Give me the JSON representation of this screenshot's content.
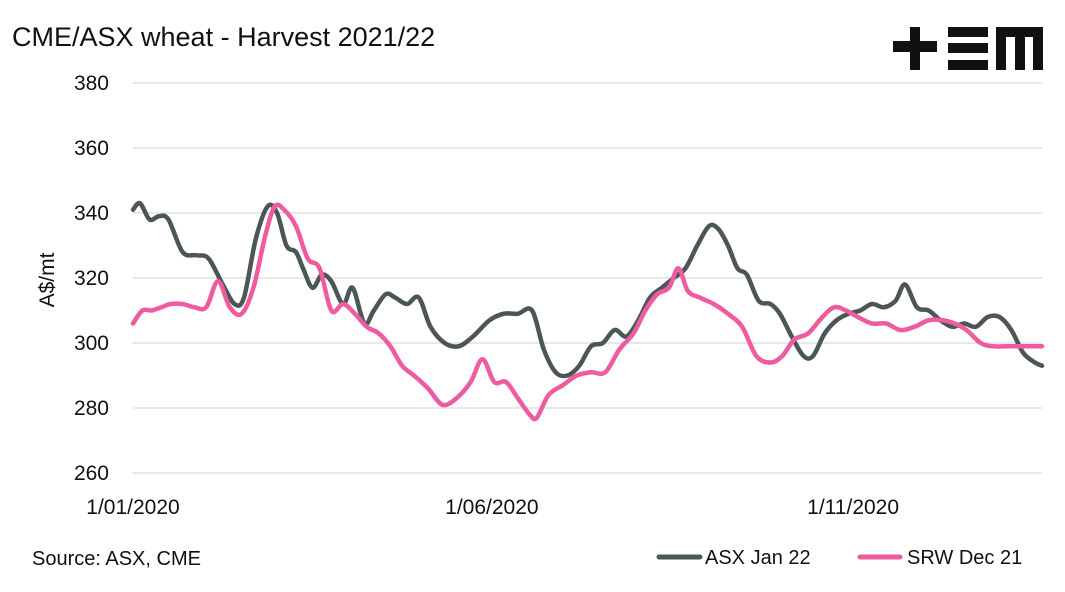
{
  "chart_data": {
    "type": "line",
    "title": "CME/ASX wheat - Harvest 2021/22",
    "ylabel": "A$/mt",
    "xlabel": "",
    "ylim": [
      260,
      380
    ],
    "yticks": [
      260,
      280,
      300,
      320,
      340,
      360,
      380
    ],
    "xlim": [
      "2020-01-01",
      "2021-01-20"
    ],
    "xticks": [
      {
        "date": "2020-01-01",
        "label": "1/01/2020"
      },
      {
        "date": "2020-06-01",
        "label": "1/06/2020"
      },
      {
        "date": "2020-11-01",
        "label": "1/11/2020"
      }
    ],
    "grid": true,
    "legend_position": "bottom-right",
    "source": "Source: ASX, CME",
    "logo": "+EM",
    "series": [
      {
        "name": "ASX Jan 22",
        "color": "#4d5656",
        "points": [
          [
            "2020-01-01",
            341
          ],
          [
            "2020-01-04",
            343
          ],
          [
            "2020-01-08",
            338
          ],
          [
            "2020-01-12",
            339
          ],
          [
            "2020-01-16",
            338
          ],
          [
            "2020-01-22",
            328
          ],
          [
            "2020-01-28",
            327
          ],
          [
            "2020-02-02",
            326
          ],
          [
            "2020-02-08",
            318
          ],
          [
            "2020-02-13",
            312
          ],
          [
            "2020-02-17",
            314
          ],
          [
            "2020-02-22",
            332
          ],
          [
            "2020-02-27",
            342
          ],
          [
            "2020-03-02",
            340
          ],
          [
            "2020-03-06",
            330
          ],
          [
            "2020-03-10",
            328
          ],
          [
            "2020-03-13",
            323
          ],
          [
            "2020-03-17",
            317
          ],
          [
            "2020-03-21",
            321
          ],
          [
            "2020-03-25",
            319
          ],
          [
            "2020-03-30",
            312
          ],
          [
            "2020-04-03",
            317
          ],
          [
            "2020-04-08",
            306
          ],
          [
            "2020-04-12",
            310
          ],
          [
            "2020-04-17",
            315
          ],
          [
            "2020-04-21",
            314
          ],
          [
            "2020-04-26",
            312
          ],
          [
            "2020-05-01",
            314
          ],
          [
            "2020-05-06",
            305
          ],
          [
            "2020-05-12",
            300
          ],
          [
            "2020-05-18",
            299
          ],
          [
            "2020-05-24",
            302
          ],
          [
            "2020-05-31",
            307
          ],
          [
            "2020-06-06",
            309
          ],
          [
            "2020-06-12",
            309
          ],
          [
            "2020-06-18",
            310
          ],
          [
            "2020-06-23",
            298
          ],
          [
            "2020-06-28",
            291
          ],
          [
            "2020-07-03",
            290
          ],
          [
            "2020-07-08",
            293
          ],
          [
            "2020-07-13",
            299
          ],
          [
            "2020-07-18",
            300
          ],
          [
            "2020-07-23",
            304
          ],
          [
            "2020-07-28",
            302
          ],
          [
            "2020-08-02",
            307
          ],
          [
            "2020-08-07",
            314
          ],
          [
            "2020-08-12",
            317
          ],
          [
            "2020-08-17",
            320
          ],
          [
            "2020-08-22",
            323
          ],
          [
            "2020-08-27",
            330
          ],
          [
            "2020-09-01",
            336
          ],
          [
            "2020-09-05",
            335
          ],
          [
            "2020-09-09",
            330
          ],
          [
            "2020-09-13",
            323
          ],
          [
            "2020-09-17",
            321
          ],
          [
            "2020-09-22",
            313
          ],
          [
            "2020-09-27",
            312
          ],
          [
            "2020-10-01",
            309
          ],
          [
            "2020-10-06",
            302
          ],
          [
            "2020-10-11",
            296
          ],
          [
            "2020-10-15",
            296
          ],
          [
            "2020-10-20",
            303
          ],
          [
            "2020-10-25",
            307
          ],
          [
            "2020-10-30",
            309
          ],
          [
            "2020-11-04",
            310
          ],
          [
            "2020-11-09",
            312
          ],
          [
            "2020-11-14",
            311
          ],
          [
            "2020-11-19",
            313
          ],
          [
            "2020-11-23",
            318
          ],
          [
            "2020-11-28",
            311
          ],
          [
            "2020-12-03",
            310
          ],
          [
            "2020-12-08",
            307
          ],
          [
            "2020-12-13",
            305
          ],
          [
            "2020-12-18",
            306
          ],
          [
            "2020-12-23",
            305
          ],
          [
            "2020-12-28",
            308
          ],
          [
            "2021-01-02",
            308
          ],
          [
            "2021-01-07",
            304
          ],
          [
            "2021-01-12",
            297
          ],
          [
            "2021-01-17",
            294
          ],
          [
            "2021-01-20",
            293
          ]
        ]
      },
      {
        "name": "SRW Dec 21",
        "color": "#ef5ba1",
        "points": [
          [
            "2020-01-01",
            306
          ],
          [
            "2020-01-05",
            310
          ],
          [
            "2020-01-09",
            310
          ],
          [
            "2020-01-13",
            311
          ],
          [
            "2020-01-17",
            312
          ],
          [
            "2020-01-22",
            312
          ],
          [
            "2020-01-27",
            311
          ],
          [
            "2020-02-01",
            311
          ],
          [
            "2020-02-06",
            319
          ],
          [
            "2020-02-11",
            311
          ],
          [
            "2020-02-16",
            309
          ],
          [
            "2020-02-21",
            317
          ],
          [
            "2020-02-26",
            333
          ],
          [
            "2020-03-01",
            342
          ],
          [
            "2020-03-05",
            341
          ],
          [
            "2020-03-10",
            336
          ],
          [
            "2020-03-15",
            326
          ],
          [
            "2020-03-20",
            323
          ],
          [
            "2020-03-25",
            310
          ],
          [
            "2020-03-30",
            312
          ],
          [
            "2020-04-04",
            309
          ],
          [
            "2020-04-09",
            305
          ],
          [
            "2020-04-14",
            303
          ],
          [
            "2020-04-19",
            299
          ],
          [
            "2020-04-24",
            293
          ],
          [
            "2020-04-29",
            290
          ],
          [
            "2020-05-05",
            286
          ],
          [
            "2020-05-11",
            281
          ],
          [
            "2020-05-17",
            283
          ],
          [
            "2020-05-23",
            288
          ],
          [
            "2020-05-28",
            295
          ],
          [
            "2020-06-02",
            288
          ],
          [
            "2020-06-07",
            288
          ],
          [
            "2020-06-12",
            283
          ],
          [
            "2020-06-17",
            278
          ],
          [
            "2020-06-20",
            277
          ],
          [
            "2020-06-25",
            284
          ],
          [
            "2020-07-01",
            287
          ],
          [
            "2020-07-07",
            290
          ],
          [
            "2020-07-13",
            291
          ],
          [
            "2020-07-19",
            291
          ],
          [
            "2020-07-25",
            298
          ],
          [
            "2020-07-31",
            303
          ],
          [
            "2020-08-05",
            310
          ],
          [
            "2020-08-10",
            315
          ],
          [
            "2020-08-15",
            317
          ],
          [
            "2020-08-19",
            323
          ],
          [
            "2020-08-23",
            316
          ],
          [
            "2020-08-28",
            314
          ],
          [
            "2020-09-03",
            312
          ],
          [
            "2020-09-09",
            309
          ],
          [
            "2020-09-15",
            305
          ],
          [
            "2020-09-21",
            296
          ],
          [
            "2020-09-27",
            294
          ],
          [
            "2020-10-02",
            296
          ],
          [
            "2020-10-07",
            301
          ],
          [
            "2020-10-13",
            303
          ],
          [
            "2020-10-19",
            308
          ],
          [
            "2020-10-24",
            311
          ],
          [
            "2020-10-29",
            310
          ],
          [
            "2020-11-03",
            308
          ],
          [
            "2020-11-09",
            306
          ],
          [
            "2020-11-15",
            306
          ],
          [
            "2020-11-21",
            304
          ],
          [
            "2020-11-27",
            305
          ],
          [
            "2020-12-03",
            307
          ],
          [
            "2020-12-09",
            307
          ],
          [
            "2020-12-14",
            306
          ],
          [
            "2020-12-19",
            304
          ],
          [
            "2020-12-25",
            300
          ],
          [
            "2020-12-30",
            299
          ],
          [
            "2021-01-05",
            299
          ],
          [
            "2021-01-11",
            299
          ],
          [
            "2021-01-20",
            299
          ]
        ]
      }
    ]
  }
}
